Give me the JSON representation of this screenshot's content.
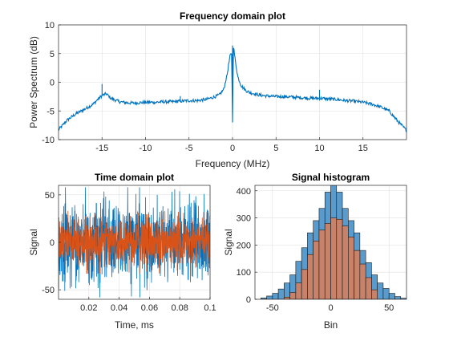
{
  "colors": {
    "series1": "#0072BD",
    "series2": "#D95319",
    "hist1": "#5A9BCD",
    "hist2": "#C8826A",
    "grid": "#dfdfdf",
    "axis": "#262626"
  },
  "chart_data": [
    {
      "type": "line",
      "title": "Frequency domain plot",
      "xlabel": "Frequency (MHz)",
      "ylabel": "Power Spectrum (dB)",
      "xlim": [
        -20,
        20
      ],
      "ylim": [
        -10,
        10
      ],
      "xticks": [
        "-15",
        "-10",
        "-5",
        "0",
        "5",
        "10",
        "15"
      ],
      "yticks": [
        "-10",
        "-5",
        "0",
        "5",
        "10"
      ],
      "grid": true,
      "series": [
        {
          "x": [
            -20,
            -19,
            -18,
            -17,
            -16,
            -15.5,
            -15,
            -14.5,
            -14,
            -13,
            -12,
            -11,
            -10,
            -9,
            -8,
            -7,
            -6,
            -5,
            -4,
            -3,
            -2,
            -1.5,
            -1,
            -0.6,
            -0.3,
            -0.1,
            0,
            0.1,
            0.3,
            0.6,
            1,
            1.5,
            2,
            3,
            4,
            5,
            6,
            7,
            8,
            9,
            10,
            11,
            12,
            13,
            14,
            15,
            16,
            17,
            18,
            19,
            20
          ],
          "values": [
            -8.3,
            -6.6,
            -5.5,
            -4.7,
            -3.8,
            -3.0,
            -2.3,
            -2.0,
            -2.8,
            -3.4,
            -3.6,
            -3.6,
            -3.5,
            -3.5,
            -3.4,
            -3.4,
            -3.3,
            -3.2,
            -3.2,
            -3.0,
            -2.5,
            -2.2,
            -1.2,
            1.5,
            4.5,
            5.0,
            -7.0,
            6.4,
            4.0,
            1.0,
            -0.6,
            -1.4,
            -1.8,
            -2.2,
            -2.4,
            -2.5,
            -2.5,
            -2.6,
            -2.7,
            -2.8,
            -2.8,
            -2.9,
            -3.0,
            -3.2,
            -3.3,
            -3.5,
            -3.8,
            -4.3,
            -5.0,
            -6.8,
            -8.4
          ]
        }
      ]
    },
    {
      "type": "line",
      "title": "Time domain plot",
      "xlabel": "Time, ms",
      "ylabel": "Signal",
      "xlim": [
        0,
        0.1
      ],
      "ylim": [
        -60,
        60
      ],
      "xticks": [
        "0.02",
        "0.04",
        "0.06",
        "0.08",
        "0.1"
      ],
      "yticks": [
        "-50",
        "0",
        "50"
      ],
      "grid": true,
      "series": [
        {
          "amplitude_range": [
            -58,
            58
          ]
        },
        {
          "amplitude_range": [
            -33,
            33
          ]
        }
      ]
    },
    {
      "type": "bar",
      "title": "Signal histogram",
      "xlabel": "Bin",
      "ylabel": "Signal",
      "xlim": [
        -65,
        65
      ],
      "ylim": [
        0,
        420
      ],
      "xticks": [
        "-50",
        "0",
        "50"
      ],
      "yticks": [
        "0",
        "100",
        "200",
        "300",
        "400"
      ],
      "grid": true,
      "bin_edges": [
        -60,
        -55,
        -50,
        -45,
        -40,
        -35,
        -30,
        -25,
        -20,
        -15,
        -10,
        -5,
        0,
        5,
        10,
        15,
        20,
        25,
        30,
        35,
        40,
        45,
        50,
        55,
        60,
        65
      ],
      "series": [
        {
          "values": [
            5,
            12,
            22,
            38,
            60,
            90,
            140,
            190,
            245,
            290,
            335,
            395,
            420,
            395,
            335,
            290,
            245,
            180,
            135,
            90,
            60,
            40,
            22,
            10,
            4
          ]
        },
        {
          "bin_edges": [
            -40,
            -35,
            -30,
            -25,
            -20,
            -15,
            -10,
            -5,
            0,
            5,
            10,
            15,
            20,
            25,
            30,
            35,
            40
          ],
          "values": [
            8,
            25,
            60,
            110,
            165,
            215,
            255,
            280,
            300,
            295,
            270,
            230,
            180,
            130,
            80,
            35
          ]
        }
      ]
    }
  ]
}
